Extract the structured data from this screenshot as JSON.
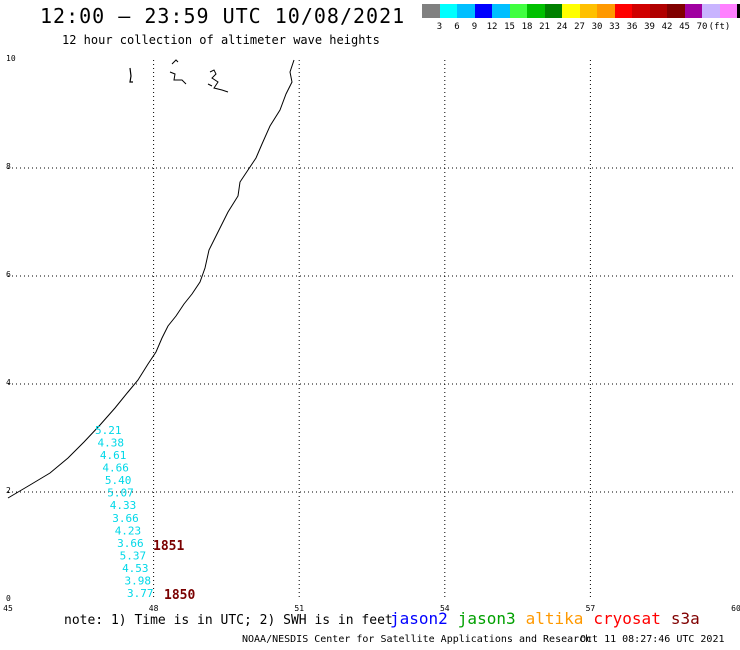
{
  "header": {
    "title": "12:00 – 23:59 UTC 10/08/2021",
    "subtitle": "12 hour collection of altimeter wave heights"
  },
  "legend": {
    "colors": [
      "#808080",
      "#00ffff",
      "#00bfff",
      "#0000ff",
      "#00bfff",
      "#40ff40",
      "#00c000",
      "#008000",
      "#ffff00",
      "#ffc000",
      "#ff9900",
      "#ff0000",
      "#d00000",
      "#b00000",
      "#800000",
      "#a000a0",
      "#c8b4ff",
      "#ff80ff",
      "#000000"
    ],
    "labels": [
      "3",
      "6",
      "9",
      "12",
      "15",
      "18",
      "21",
      "24",
      "27",
      "30",
      "33",
      "36",
      "39",
      "42",
      "45",
      "70",
      "(ft)"
    ],
    "unit": "(ft)"
  },
  "map": {
    "x_ticks": [
      "45",
      "48",
      "51",
      "54",
      "57",
      "60"
    ],
    "y_ticks": [
      "0",
      "2",
      "4",
      "6",
      "8",
      "10"
    ],
    "x_range": [
      45,
      60
    ],
    "y_range": [
      0,
      10
    ],
    "grid": true,
    "swh_color": "#00d8e8",
    "swh_values": [
      "5.21",
      "4.38",
      "4.61",
      "4.66",
      "5.40",
      "5.07",
      "4.33",
      "3.66",
      "4.23",
      "3.66",
      "5.37",
      "4.53",
      "3.98",
      "3.77"
    ],
    "pass_labels": [
      "1851",
      "1850"
    ],
    "pass_color": "#7a0000"
  },
  "footer": {
    "note": "note: 1) Time is in UTC; 2) SWH is in feet",
    "satellites": [
      {
        "name": "jason2",
        "color": "#0000ff"
      },
      {
        "name": "jason3",
        "color": "#00a000"
      },
      {
        "name": "altika",
        "color": "#ff9900"
      },
      {
        "name": "cryosat",
        "color": "#ff0000"
      },
      {
        "name": "s3a",
        "color": "#800000"
      }
    ],
    "credit": "NOAA/NESDIS Center for Satellite Applications and Research",
    "timestamp": "Oct 11 08:27:46 UTC 2021"
  }
}
